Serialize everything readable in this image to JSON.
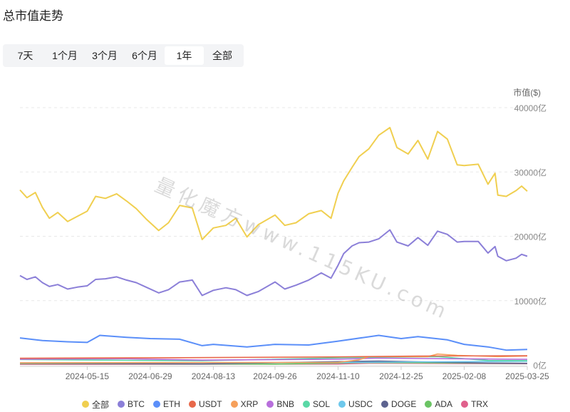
{
  "page": {
    "title": "总市值走势"
  },
  "tabs": [
    {
      "label": "7天",
      "active": false
    },
    {
      "label": "1个月",
      "active": false
    },
    {
      "label": "3个月",
      "active": false
    },
    {
      "label": "6个月",
      "active": false
    },
    {
      "label": "1年",
      "active": true
    },
    {
      "label": "全部",
      "active": false
    }
  ],
  "watermark": "量化魔方www.115KU.com",
  "chart_data": {
    "type": "line",
    "ylabel": "市值($)",
    "ylim": [
      0,
      40000
    ],
    "y_ticks": [
      {
        "value": 0,
        "label": "0亿"
      },
      {
        "value": 10000,
        "label": "10000亿"
      },
      {
        "value": 20000,
        "label": "20000亿"
      },
      {
        "value": 30000,
        "label": "30000亿"
      },
      {
        "value": 40000,
        "label": "40000亿"
      }
    ],
    "x_ticks": [
      "2024-05-15",
      "2024-06-29",
      "2024-08-13",
      "2024-09-26",
      "2024-11-10",
      "2024-12-25",
      "2025-02-08",
      "2025-03-25"
    ],
    "xlim": [
      "2024-03-28",
      "2025-03-25"
    ],
    "grid": true,
    "legend_position": "bottom",
    "series": [
      {
        "name": "全部",
        "color": "#f0cf50",
        "points": [
          [
            "2024-03-28",
            27200
          ],
          [
            "2024-04-02",
            26000
          ],
          [
            "2024-04-08",
            26800
          ],
          [
            "2024-04-13",
            24500
          ],
          [
            "2024-04-18",
            22800
          ],
          [
            "2024-04-24",
            23700
          ],
          [
            "2024-05-01",
            22300
          ],
          [
            "2024-05-08",
            23100
          ],
          [
            "2024-05-15",
            23900
          ],
          [
            "2024-05-21",
            26200
          ],
          [
            "2024-05-28",
            25900
          ],
          [
            "2024-06-05",
            26600
          ],
          [
            "2024-06-12",
            25500
          ],
          [
            "2024-06-19",
            24300
          ],
          [
            "2024-06-26",
            22700
          ],
          [
            "2024-07-05",
            20900
          ],
          [
            "2024-07-12",
            22100
          ],
          [
            "2024-07-20",
            24800
          ],
          [
            "2024-07-29",
            24400
          ],
          [
            "2024-08-05",
            19500
          ],
          [
            "2024-08-13",
            21300
          ],
          [
            "2024-08-22",
            21700
          ],
          [
            "2024-08-29",
            22800
          ],
          [
            "2024-09-06",
            19900
          ],
          [
            "2024-09-14",
            21800
          ],
          [
            "2024-09-26",
            23300
          ],
          [
            "2024-10-03",
            21700
          ],
          [
            "2024-10-11",
            22100
          ],
          [
            "2024-10-20",
            23500
          ],
          [
            "2024-10-29",
            24000
          ],
          [
            "2024-11-05",
            22800
          ],
          [
            "2024-11-10",
            26700
          ],
          [
            "2024-11-14",
            28600
          ],
          [
            "2024-11-20",
            30700
          ],
          [
            "2024-11-25",
            32400
          ],
          [
            "2024-12-02",
            33600
          ],
          [
            "2024-12-09",
            35700
          ],
          [
            "2024-12-17",
            36900
          ],
          [
            "2024-12-22",
            33800
          ],
          [
            "2024-12-30",
            32800
          ],
          [
            "2025-01-06",
            34900
          ],
          [
            "2025-01-13",
            32000
          ],
          [
            "2025-01-20",
            36300
          ],
          [
            "2025-01-27",
            35100
          ],
          [
            "2025-02-03",
            31100
          ],
          [
            "2025-02-08",
            31000
          ],
          [
            "2025-02-18",
            31200
          ],
          [
            "2025-02-25",
            28100
          ],
          [
            "2025-03-02",
            29800
          ],
          [
            "2025-03-04",
            26400
          ],
          [
            "2025-03-10",
            26200
          ],
          [
            "2025-03-17",
            27100
          ],
          [
            "2025-03-21",
            27800
          ],
          [
            "2025-03-25",
            27000
          ]
        ]
      },
      {
        "name": "BTC",
        "color": "#8b7fd8",
        "points": [
          [
            "2024-03-28",
            13900
          ],
          [
            "2024-04-02",
            13300
          ],
          [
            "2024-04-08",
            13700
          ],
          [
            "2024-04-13",
            12800
          ],
          [
            "2024-04-18",
            12200
          ],
          [
            "2024-04-24",
            12500
          ],
          [
            "2024-05-01",
            11800
          ],
          [
            "2024-05-08",
            12100
          ],
          [
            "2024-05-15",
            12300
          ],
          [
            "2024-05-21",
            13300
          ],
          [
            "2024-05-28",
            13400
          ],
          [
            "2024-06-05",
            13700
          ],
          [
            "2024-06-12",
            13200
          ],
          [
            "2024-06-19",
            12800
          ],
          [
            "2024-06-26",
            12100
          ],
          [
            "2024-07-05",
            11200
          ],
          [
            "2024-07-12",
            11700
          ],
          [
            "2024-07-20",
            12900
          ],
          [
            "2024-07-29",
            13200
          ],
          [
            "2024-08-05",
            10800
          ],
          [
            "2024-08-13",
            11600
          ],
          [
            "2024-08-22",
            12000
          ],
          [
            "2024-08-29",
            11700
          ],
          [
            "2024-09-06",
            10800
          ],
          [
            "2024-09-14",
            11400
          ],
          [
            "2024-09-26",
            12900
          ],
          [
            "2024-10-03",
            11800
          ],
          [
            "2024-10-11",
            12400
          ],
          [
            "2024-10-20",
            13200
          ],
          [
            "2024-10-29",
            14300
          ],
          [
            "2024-11-05",
            13500
          ],
          [
            "2024-11-10",
            15500
          ],
          [
            "2024-11-14",
            17300
          ],
          [
            "2024-11-20",
            18500
          ],
          [
            "2024-11-25",
            19000
          ],
          [
            "2024-12-02",
            19100
          ],
          [
            "2024-12-09",
            19600
          ],
          [
            "2024-12-17",
            21000
          ],
          [
            "2024-12-22",
            19100
          ],
          [
            "2024-12-30",
            18500
          ],
          [
            "2025-01-06",
            19800
          ],
          [
            "2025-01-13",
            18600
          ],
          [
            "2025-01-20",
            20800
          ],
          [
            "2025-01-27",
            20300
          ],
          [
            "2025-02-03",
            19100
          ],
          [
            "2025-02-08",
            19200
          ],
          [
            "2025-02-18",
            19200
          ],
          [
            "2025-02-25",
            17400
          ],
          [
            "2025-03-02",
            18400
          ],
          [
            "2025-03-04",
            16900
          ],
          [
            "2025-03-10",
            16200
          ],
          [
            "2025-03-17",
            16600
          ],
          [
            "2025-03-21",
            17200
          ],
          [
            "2025-03-25",
            16900
          ]
        ]
      },
      {
        "name": "ETH",
        "color": "#5b8ff9",
        "points": [
          [
            "2024-03-28",
            4200
          ],
          [
            "2024-04-13",
            3800
          ],
          [
            "2024-05-01",
            3600
          ],
          [
            "2024-05-15",
            3500
          ],
          [
            "2024-05-24",
            4600
          ],
          [
            "2024-06-12",
            4300
          ],
          [
            "2024-06-29",
            4100
          ],
          [
            "2024-07-20",
            4000
          ],
          [
            "2024-08-05",
            3000
          ],
          [
            "2024-08-13",
            3200
          ],
          [
            "2024-09-06",
            2800
          ],
          [
            "2024-09-26",
            3200
          ],
          [
            "2024-10-20",
            3100
          ],
          [
            "2024-11-10",
            3700
          ],
          [
            "2024-12-09",
            4600
          ],
          [
            "2024-12-25",
            4100
          ],
          [
            "2025-01-06",
            4400
          ],
          [
            "2025-01-27",
            3900
          ],
          [
            "2025-02-08",
            3200
          ],
          [
            "2025-02-25",
            2800
          ],
          [
            "2025-03-10",
            2300
          ],
          [
            "2025-03-25",
            2400
          ]
        ]
      },
      {
        "name": "USDT",
        "color": "#e8684a",
        "points": [
          [
            "2024-03-28",
            1040
          ],
          [
            "2024-08-13",
            1150
          ],
          [
            "2024-11-10",
            1250
          ],
          [
            "2025-01-06",
            1380
          ],
          [
            "2025-03-25",
            1430
          ]
        ]
      },
      {
        "name": "XRP",
        "color": "#f6a05b",
        "points": [
          [
            "2024-03-28",
            340
          ],
          [
            "2024-11-10",
            400
          ],
          [
            "2024-11-25",
            800
          ],
          [
            "2024-12-02",
            1300
          ],
          [
            "2025-01-13",
            1300
          ],
          [
            "2025-01-20",
            1700
          ],
          [
            "2025-02-03",
            1500
          ],
          [
            "2025-03-04",
            1300
          ],
          [
            "2025-03-25",
            1400
          ]
        ]
      },
      {
        "name": "BNB",
        "color": "#b86fdc",
        "points": [
          [
            "2024-03-28",
            900
          ],
          [
            "2024-06-12",
            960
          ],
          [
            "2024-08-05",
            750
          ],
          [
            "2024-11-10",
            900
          ],
          [
            "2024-12-09",
            1050
          ],
          [
            "2025-03-25",
            880
          ]
        ]
      },
      {
        "name": "SOL",
        "color": "#5ad8a6",
        "points": [
          [
            "2024-03-28",
            850
          ],
          [
            "2024-06-12",
            720
          ],
          [
            "2024-08-05",
            650
          ],
          [
            "2024-11-20",
            1150
          ],
          [
            "2025-01-20",
            1300
          ],
          [
            "2025-02-25",
            700
          ],
          [
            "2025-03-25",
            680
          ]
        ]
      },
      {
        "name": "USDC",
        "color": "#6dc8ec",
        "points": [
          [
            "2024-03-28",
            320
          ],
          [
            "2024-11-10",
            380
          ],
          [
            "2025-01-06",
            480
          ],
          [
            "2025-03-25",
            580
          ]
        ]
      },
      {
        "name": "DOGE",
        "color": "#5d6390",
        "points": [
          [
            "2024-03-28",
            300
          ],
          [
            "2024-08-05",
            150
          ],
          [
            "2024-11-20",
            550
          ],
          [
            "2024-12-09",
            600
          ],
          [
            "2025-02-25",
            300
          ],
          [
            "2025-03-25",
            260
          ]
        ]
      },
      {
        "name": "ADA",
        "color": "#6bc464",
        "points": [
          [
            "2024-03-28",
            220
          ],
          [
            "2024-09-26",
            130
          ],
          [
            "2024-12-02",
            380
          ],
          [
            "2025-03-25",
            240
          ]
        ]
      },
      {
        "name": "TRX",
        "color": "#e0608c",
        "points": [
          [
            "2024-03-28",
            110
          ],
          [
            "2024-11-10",
            150
          ],
          [
            "2024-12-05",
            300
          ],
          [
            "2025-03-25",
            200
          ]
        ]
      }
    ]
  }
}
